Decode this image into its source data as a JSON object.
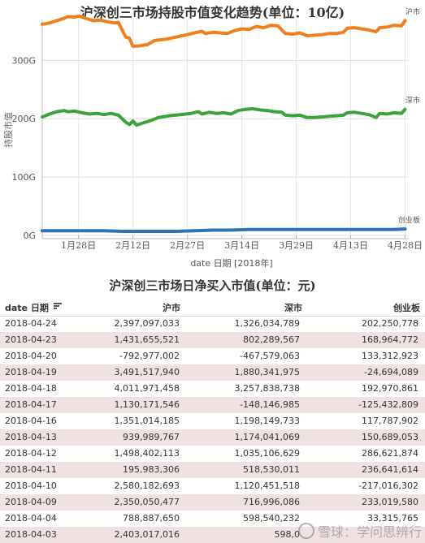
{
  "chart_data": {
    "type": "line",
    "title": "沪深创三市场持股市值变化趋势(单位：10亿)",
    "xlabel": "date 日期 [2018年]",
    "ylabel": "持股市值",
    "ylim": [
      0,
      370
    ],
    "y_ticks": [
      {
        "value": 0,
        "label": "0G"
      },
      {
        "value": 100,
        "label": "100G"
      },
      {
        "value": 200,
        "label": "200G"
      },
      {
        "value": 300,
        "label": "300G"
      }
    ],
    "x_ticks": [
      {
        "value": 28,
        "label": "1月28日"
      },
      {
        "value": 43,
        "label": "2月12日"
      },
      {
        "value": 58,
        "label": "2月27日"
      },
      {
        "value": 73,
        "label": "3月14日"
      },
      {
        "value": 88,
        "label": "3月29日"
      },
      {
        "value": 103,
        "label": "4月13日"
      },
      {
        "value": 118,
        "label": "4月28日"
      }
    ],
    "x_range": [
      18,
      119
    ],
    "legend_position": "right-inline",
    "series": [
      {
        "name": "沪市",
        "color": "#f07f1e",
        "points": [
          [
            18,
            362
          ],
          [
            20,
            364
          ],
          [
            22,
            368
          ],
          [
            24,
            372
          ],
          [
            25,
            375
          ],
          [
            27,
            374
          ],
          [
            28,
            376
          ],
          [
            30,
            372
          ],
          [
            32,
            368
          ],
          [
            34,
            369
          ],
          [
            36,
            366
          ],
          [
            38,
            364
          ],
          [
            39,
            365
          ],
          [
            40,
            352
          ],
          [
            41,
            340
          ],
          [
            42,
            338
          ],
          [
            43,
            324
          ],
          [
            45,
            325
          ],
          [
            47,
            327
          ],
          [
            49,
            334
          ],
          [
            52,
            336
          ],
          [
            55,
            340
          ],
          [
            58,
            344
          ],
          [
            60,
            347
          ],
          [
            62,
            350
          ],
          [
            63,
            346
          ],
          [
            65,
            348
          ],
          [
            67,
            347
          ],
          [
            69,
            346
          ],
          [
            71,
            351
          ],
          [
            73,
            354
          ],
          [
            75,
            353
          ],
          [
            77,
            358
          ],
          [
            79,
            356
          ],
          [
            81,
            360
          ],
          [
            83,
            359
          ],
          [
            84,
            352
          ],
          [
            85,
            346
          ],
          [
            87,
            345
          ],
          [
            89,
            347
          ],
          [
            91,
            342
          ],
          [
            93,
            343
          ],
          [
            95,
            344
          ],
          [
            97,
            346
          ],
          [
            99,
            346
          ],
          [
            101,
            348
          ],
          [
            102,
            355
          ],
          [
            104,
            356
          ],
          [
            106,
            354
          ],
          [
            108,
            352
          ],
          [
            110,
            349
          ],
          [
            111,
            356
          ],
          [
            113,
            357
          ],
          [
            115,
            360
          ],
          [
            117,
            359
          ],
          [
            118,
            368
          ]
        ]
      },
      {
        "name": "深市",
        "color": "#3aa33a",
        "points": [
          [
            18,
            203
          ],
          [
            20,
            208
          ],
          [
            22,
            212
          ],
          [
            24,
            214
          ],
          [
            25,
            212
          ],
          [
            27,
            213
          ],
          [
            29,
            210
          ],
          [
            31,
            208
          ],
          [
            33,
            209
          ],
          [
            35,
            207
          ],
          [
            37,
            209
          ],
          [
            39,
            206
          ],
          [
            40,
            200
          ],
          [
            41,
            194
          ],
          [
            42,
            190
          ],
          [
            43,
            196
          ],
          [
            44,
            189
          ],
          [
            46,
            193
          ],
          [
            48,
            197
          ],
          [
            50,
            202
          ],
          [
            53,
            205
          ],
          [
            56,
            207
          ],
          [
            59,
            209
          ],
          [
            61,
            212
          ],
          [
            62,
            208
          ],
          [
            64,
            211
          ],
          [
            66,
            209
          ],
          [
            68,
            210
          ],
          [
            70,
            208
          ],
          [
            72,
            214
          ],
          [
            74,
            216
          ],
          [
            76,
            217
          ],
          [
            78,
            215
          ],
          [
            80,
            214
          ],
          [
            82,
            212
          ],
          [
            84,
            211
          ],
          [
            85,
            206
          ],
          [
            87,
            205
          ],
          [
            89,
            206
          ],
          [
            91,
            202
          ],
          [
            93,
            202
          ],
          [
            95,
            203
          ],
          [
            97,
            204
          ],
          [
            99,
            205
          ],
          [
            101,
            206
          ],
          [
            102,
            210
          ],
          [
            104,
            211
          ],
          [
            106,
            209
          ],
          [
            108,
            207
          ],
          [
            110,
            202
          ],
          [
            111,
            209
          ],
          [
            113,
            208
          ],
          [
            115,
            210
          ],
          [
            117,
            209
          ],
          [
            118,
            216
          ]
        ]
      },
      {
        "name": "创业板",
        "color": "#2c74b3",
        "points": [
          [
            18,
            8
          ],
          [
            25,
            8
          ],
          [
            30,
            8
          ],
          [
            35,
            8
          ],
          [
            40,
            7
          ],
          [
            45,
            7
          ],
          [
            50,
            7
          ],
          [
            55,
            7
          ],
          [
            60,
            8
          ],
          [
            65,
            9
          ],
          [
            70,
            9
          ],
          [
            75,
            10
          ],
          [
            80,
            10
          ],
          [
            85,
            10
          ],
          [
            90,
            10
          ],
          [
            95,
            10
          ],
          [
            100,
            10
          ],
          [
            105,
            10
          ],
          [
            110,
            10
          ],
          [
            115,
            10
          ],
          [
            118,
            11
          ]
        ]
      }
    ]
  },
  "table": {
    "title": "沪深创三市场日净买入市值(单位：元)",
    "headers": {
      "date": "date 日期",
      "sh": "沪市",
      "sz": "深市",
      "cy": "创业板"
    },
    "rows": [
      {
        "date": "2018-04-24",
        "sh": "2,397,097,033",
        "sz": "1,326,034,789",
        "cy": "202,250,778"
      },
      {
        "date": "2018-04-23",
        "sh": "1,431,655,521",
        "sz": "802,289,567",
        "cy": "168,964,772"
      },
      {
        "date": "2018-04-20",
        "sh": "-792,977,002",
        "sz": "-467,579,063",
        "cy": "133,312,923"
      },
      {
        "date": "2018-04-19",
        "sh": "3,491,517,940",
        "sz": "1,880,341,975",
        "cy": "-24,694,089"
      },
      {
        "date": "2018-04-18",
        "sh": "4,011,971,458",
        "sz": "3,257,838,738",
        "cy": "192,970,861"
      },
      {
        "date": "2018-04-17",
        "sh": "1,130,171,546",
        "sz": "-148,146,985",
        "cy": "-125,432,809"
      },
      {
        "date": "2018-04-16",
        "sh": "1,351,014,185",
        "sz": "1,198,149,733",
        "cy": "117,787,902"
      },
      {
        "date": "2018-04-13",
        "sh": "939,989,767",
        "sz": "1,174,041,069",
        "cy": "150,689,053"
      },
      {
        "date": "2018-04-12",
        "sh": "1,498,402,113",
        "sz": "1,035,106,629",
        "cy": "286,621,874"
      },
      {
        "date": "2018-04-11",
        "sh": "195,983,306",
        "sz": "518,530,011",
        "cy": "236,641,614"
      },
      {
        "date": "2018-04-10",
        "sh": "2,580,182,693",
        "sz": "1,120,451,518",
        "cy": "-217,016,302"
      },
      {
        "date": "2018-04-09",
        "sh": "2,350,050,477",
        "sz": "716,996,086",
        "cy": "233,019,580"
      },
      {
        "date": "2018-04-04",
        "sh": "788,887,650",
        "sz": "598,540,232",
        "cy": "33,315,765"
      },
      {
        "date": "2018-04-03",
        "sh": "2,403,017,016",
        "sz": "598,0",
        "cy": ""
      }
    ]
  },
  "watermark": {
    "text": "雪球：学问思辨行"
  }
}
